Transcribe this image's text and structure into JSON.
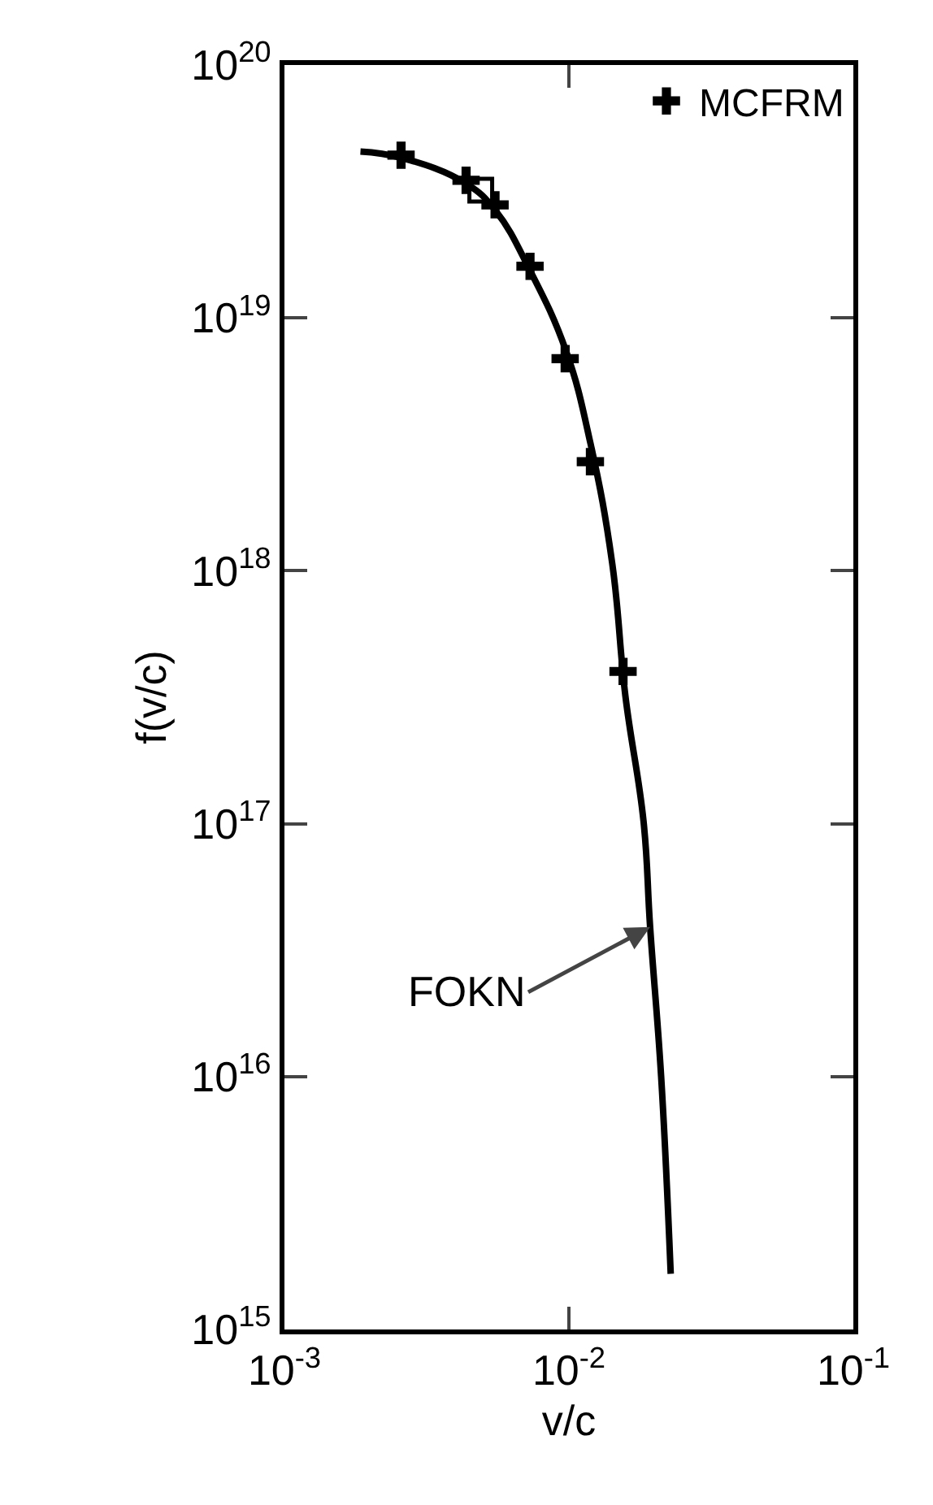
{
  "chart_data": {
    "type": "line",
    "xlabel": "v/c",
    "ylabel": "f(v/c)",
    "log": "xy",
    "grid": false,
    "legend": "top right",
    "xlim": [
      0.001,
      0.1
    ],
    "ylim": [
      1000000000000000.0,
      1e+20
    ],
    "xticks": [
      {
        "value": 0.001,
        "label": "10$^{-3}$"
      },
      {
        "value": 0.01,
        "label": "10$^{-2}$"
      },
      {
        "value": 0.1,
        "label": "10$^{-1}$"
      }
    ],
    "yticks": [
      {
        "value": 1000000000000000.0,
        "label": "10$^{15}$"
      },
      {
        "value": 1e+16,
        "label": "10$^{16}$"
      },
      {
        "value": 1e+17,
        "label": "10$^{17}$"
      },
      {
        "value": 1e+18,
        "label": "10$^{18}$"
      },
      {
        "value": 1e+19,
        "label": "10$^{19}$"
      },
      {
        "value": 1e+20,
        "label": "10$^{20}$"
      }
    ],
    "series": [
      {
        "color": "#000000",
        "marker": "none",
        "line_style": "solid",
        "x": [
          0.00185,
          0.00257,
          0.00435,
          0.00553,
          0.0073,
          0.00977,
          0.0119,
          0.0142,
          0.0158,
          0.0183,
          0.0193,
          0.0211,
          0.0228
        ],
        "values": [
          4.55e+19,
          4.3e+19,
          3.4e+19,
          2.65e+19,
          1.54e+19,
          7.4e+18,
          3.2e+18,
          1.07e+18,
          3.2e+17,
          1.02e+17,
          3.9e+16,
          1e+16,
          1660000000000000.0
        ]
      },
      {
        "type": "scatter",
        "name": "MCFRM",
        "color": "#000000",
        "marker": "cross",
        "x": [
          0.00257,
          0.00435,
          0.0055,
          0.0073,
          0.0097,
          0.0119,
          0.0155
        ],
        "values": [
          4.4e+19,
          3.5e+19,
          2.8e+19,
          1.6e+19,
          6.9e+18,
          2.7e+18,
          4e+17
        ]
      },
      {
        "type": "scatter",
        "color": "#000000",
        "marker": "square",
        "x": [
          0.0049
        ],
        "values": [
          3.2e+19
        ]
      }
    ],
    "annotations": [
      {
        "text": "FOKN",
        "x": 0.0193,
        "y": 3.9e+16
      }
    ]
  }
}
